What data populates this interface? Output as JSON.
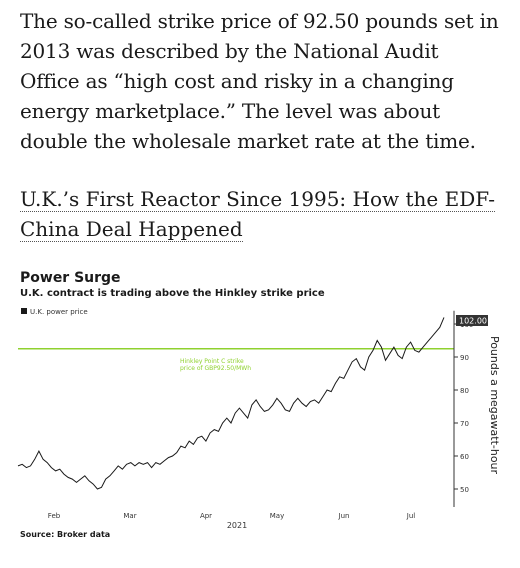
{
  "article": {
    "paragraph": "The so-called strike price of 92.50 pounds set in 2013 was described by the National Audit Office as “high cost and risky in a changing energy marketplace.” The level was about double the wholesale market rate at the time.",
    "related_link": "U.K.’s First Reactor Since 1995: How the EDF-China Deal Happened"
  },
  "chart": {
    "title": "Power Surge",
    "subtitle": "U.K. contract is trading above the Hinkley strike price",
    "source": "Source: Broker data"
  },
  "chart_data": {
    "type": "line",
    "legend": "U.K. power price",
    "legend_placement": "top-left",
    "ylabel": "Pounds a megawatt-hour",
    "xlabel": "2021",
    "x_ticks": [
      "Feb",
      "Mar",
      "Apr",
      "May",
      "Jun",
      "Jul"
    ],
    "y_ticks": [
      50,
      60,
      70,
      80,
      90,
      100
    ],
    "ylim": [
      45,
      104
    ],
    "last_value_label": "102.00",
    "reference_line": {
      "value": 92.5,
      "label_line1": "Hinkley Point C strike",
      "label_line2": "price of GBP92.50/MWh"
    },
    "colors": {
      "series": "#1a1a1a",
      "reference": "#8fd12f",
      "last_value_bg": "#333333"
    },
    "series": [
      {
        "values": [
          57,
          57.5,
          56.5,
          57,
          59,
          61.5,
          59,
          58,
          56.5,
          55.5,
          56,
          54.5,
          53.5,
          53,
          52,
          53,
          54,
          52.5,
          51.5,
          50,
          50.5,
          53,
          54,
          55.5,
          57,
          56,
          57.5,
          58,
          57,
          58,
          57.5,
          58,
          56.5,
          58,
          57.5,
          58.5,
          59.5,
          60,
          61,
          63,
          62.5,
          64.5,
          63.5,
          65.5,
          66,
          64.5,
          67,
          68,
          67.5,
          70,
          71.5,
          70,
          73,
          74.5,
          73,
          71.5,
          75.5,
          77,
          75,
          73.5,
          74,
          75.5,
          77.5,
          76,
          74,
          73.5,
          76,
          77.5,
          76,
          75,
          76.5,
          77,
          76,
          78,
          80,
          79.5,
          82,
          84,
          83.5,
          86,
          88.5,
          89.5,
          87,
          86,
          90,
          92,
          95,
          93,
          89,
          91,
          93,
          90.5,
          89.5,
          93,
          94.5,
          92,
          91.5,
          93,
          94.5,
          96,
          97.5,
          99,
          102
        ]
      }
    ]
  }
}
